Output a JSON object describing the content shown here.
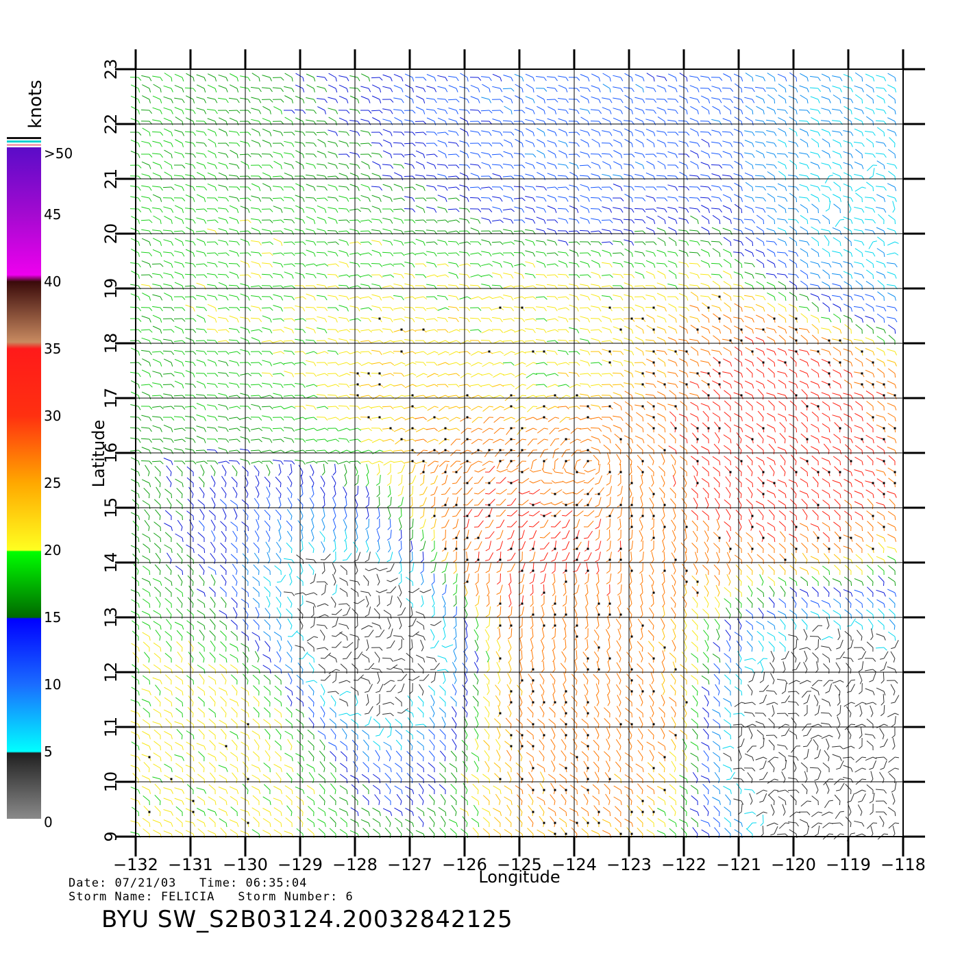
{
  "colorbar": {
    "unit_label": "knots",
    "labels": [
      ">50",
      "45",
      "40",
      "35",
      "30",
      "25",
      "20",
      "15",
      "10",
      "5",
      "0"
    ],
    "stops": [
      {
        "value": 50,
        "color": "#5a0cc8"
      },
      {
        "value": 45,
        "color": "#a40ad0"
      },
      {
        "value": 40.5,
        "color": "#ee00ee"
      },
      {
        "value": 40,
        "color": "#3a0a0a"
      },
      {
        "value": 35.5,
        "color": "#c88a60"
      },
      {
        "value": 35,
        "color": "#ff1a1a"
      },
      {
        "value": 30,
        "color": "#ff3010"
      },
      {
        "value": 25,
        "color": "#ffa800"
      },
      {
        "value": 20,
        "color": "#ffff20"
      },
      {
        "value": 19.9,
        "color": "#00ff00"
      },
      {
        "value": 15,
        "color": "#006800"
      },
      {
        "value": 14.9,
        "color": "#0000ff"
      },
      {
        "value": 10,
        "color": "#1a6cff"
      },
      {
        "value": 5,
        "color": "#00ffff"
      },
      {
        "value": 4.9,
        "color": "#202020"
      },
      {
        "value": 0,
        "color": "#8a8a8a"
      }
    ],
    "flag_colors": [
      "#111111",
      "#00d0d0",
      "#f0a0b0"
    ]
  },
  "chart_data": {
    "type": "wind_vector_field",
    "xlabel": "Longitude",
    "ylabel": "Latitude",
    "xlim": [
      -132,
      -118
    ],
    "ylim": [
      9,
      23
    ],
    "x_ticks": [
      "-132",
      "-131",
      "-130",
      "-129",
      "-128",
      "-127",
      "-126",
      "-125",
      "-124",
      "-123",
      "-122",
      "-121",
      "-120",
      "-119",
      "-118"
    ],
    "y_ticks": [
      "9",
      "10",
      "11",
      "12",
      "13",
      "14",
      "15",
      "16",
      "17",
      "18",
      "19",
      "20",
      "21",
      "22",
      "23"
    ],
    "grid": true,
    "units": "knots",
    "storm_center": {
      "lon": -123.7,
      "lat": 15.8
    },
    "speed_regions": [
      {
        "lon": -124.0,
        "lat": 15.8,
        "speed": 28
      },
      {
        "lon": -124.8,
        "lat": 14.4,
        "speed": 31
      },
      {
        "lon": -120.3,
        "lat": 16.3,
        "speed": 33
      },
      {
        "lon": -123.6,
        "lat": 11.4,
        "speed": 27
      },
      {
        "lon": -124.4,
        "lat": 17.8,
        "speed": 21
      },
      {
        "lon": -130.4,
        "lat": 10.6,
        "speed": 21
      },
      {
        "lon": -119.6,
        "lat": 11.0,
        "speed": 2
      },
      {
        "lon": -127.6,
        "lat": 12.6,
        "speed": 3
      },
      {
        "lon": -124.0,
        "lat": 21.8,
        "speed": 11
      },
      {
        "lon": -118.4,
        "lat": 20.5,
        "speed": 7
      }
    ]
  },
  "info": {
    "date_label": "Date:",
    "date": "07/21/03",
    "time_label": "Time:",
    "time": "06:35:04",
    "storm_name_label": "Storm Name:",
    "storm_name": "FELICIA",
    "storm_number_label": "Storm Number:",
    "storm_number": "6"
  },
  "title": "BYU SW_S2B03124.20032842125"
}
